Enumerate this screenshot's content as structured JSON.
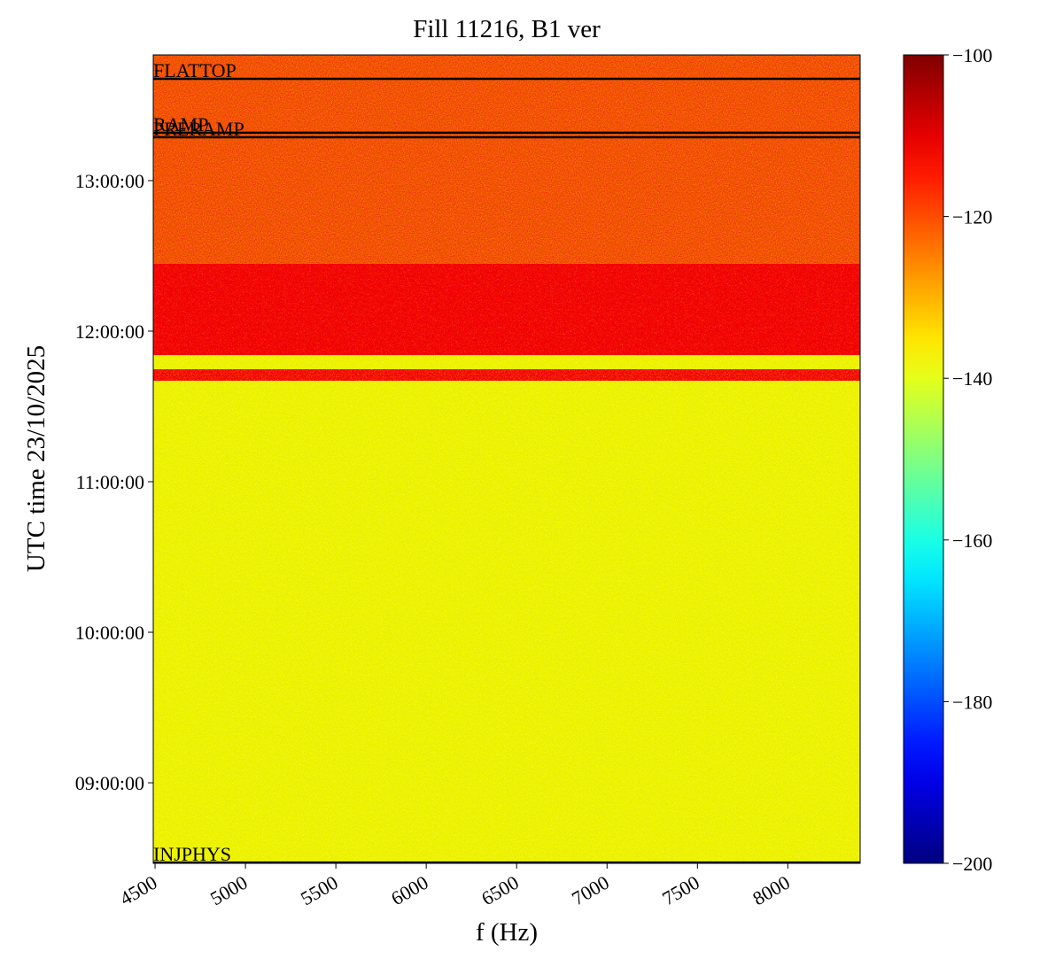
{
  "chart_data": {
    "type": "spectrogram",
    "title": "Fill 11216, B1 ver",
    "x_label": "f (Hz)",
    "y_label": "UTC time 23/10/2025",
    "xlim": [
      4490,
      8400
    ],
    "xticks": [
      4500,
      5000,
      5500,
      6000,
      6500,
      7000,
      7500,
      8000
    ],
    "ylim": [
      8.465,
      13.835
    ],
    "yticks": [
      {
        "value": 9,
        "label": "09:00:00"
      },
      {
        "value": 10,
        "label": "10:00:00"
      },
      {
        "value": 11,
        "label": "11:00:00"
      },
      {
        "value": 12,
        "label": "12:00:00"
      },
      {
        "value": 13,
        "label": "13:00:00"
      }
    ],
    "colormap": "jet",
    "clim": [
      -200,
      -100
    ],
    "cticks": [
      {
        "value": -200,
        "label": "−200"
      },
      {
        "value": -180,
        "label": "−180"
      },
      {
        "value": -160,
        "label": "−160"
      },
      {
        "value": -140,
        "label": "−140"
      },
      {
        "value": -120,
        "label": "−120"
      },
      {
        "value": -100,
        "label": "−100"
      }
    ],
    "bands": [
      {
        "t0": 8.465,
        "t1": 11.67,
        "level": -138
      },
      {
        "t0": 11.67,
        "t1": 11.747,
        "level": -122
      },
      {
        "t0": 11.747,
        "t1": 11.84,
        "level": -138
      },
      {
        "t0": 11.84,
        "t1": 12.447,
        "level": -120
      },
      {
        "t0": 12.447,
        "t1": 13.835,
        "level": -125
      }
    ],
    "events": [
      {
        "label": "FLATTOP",
        "time": 13.676
      },
      {
        "label": "RAMP",
        "time": 13.318
      },
      {
        "label": "PRERAMP",
        "time": 13.288
      },
      {
        "label": "INJPHYS",
        "time": 8.47
      }
    ]
  }
}
